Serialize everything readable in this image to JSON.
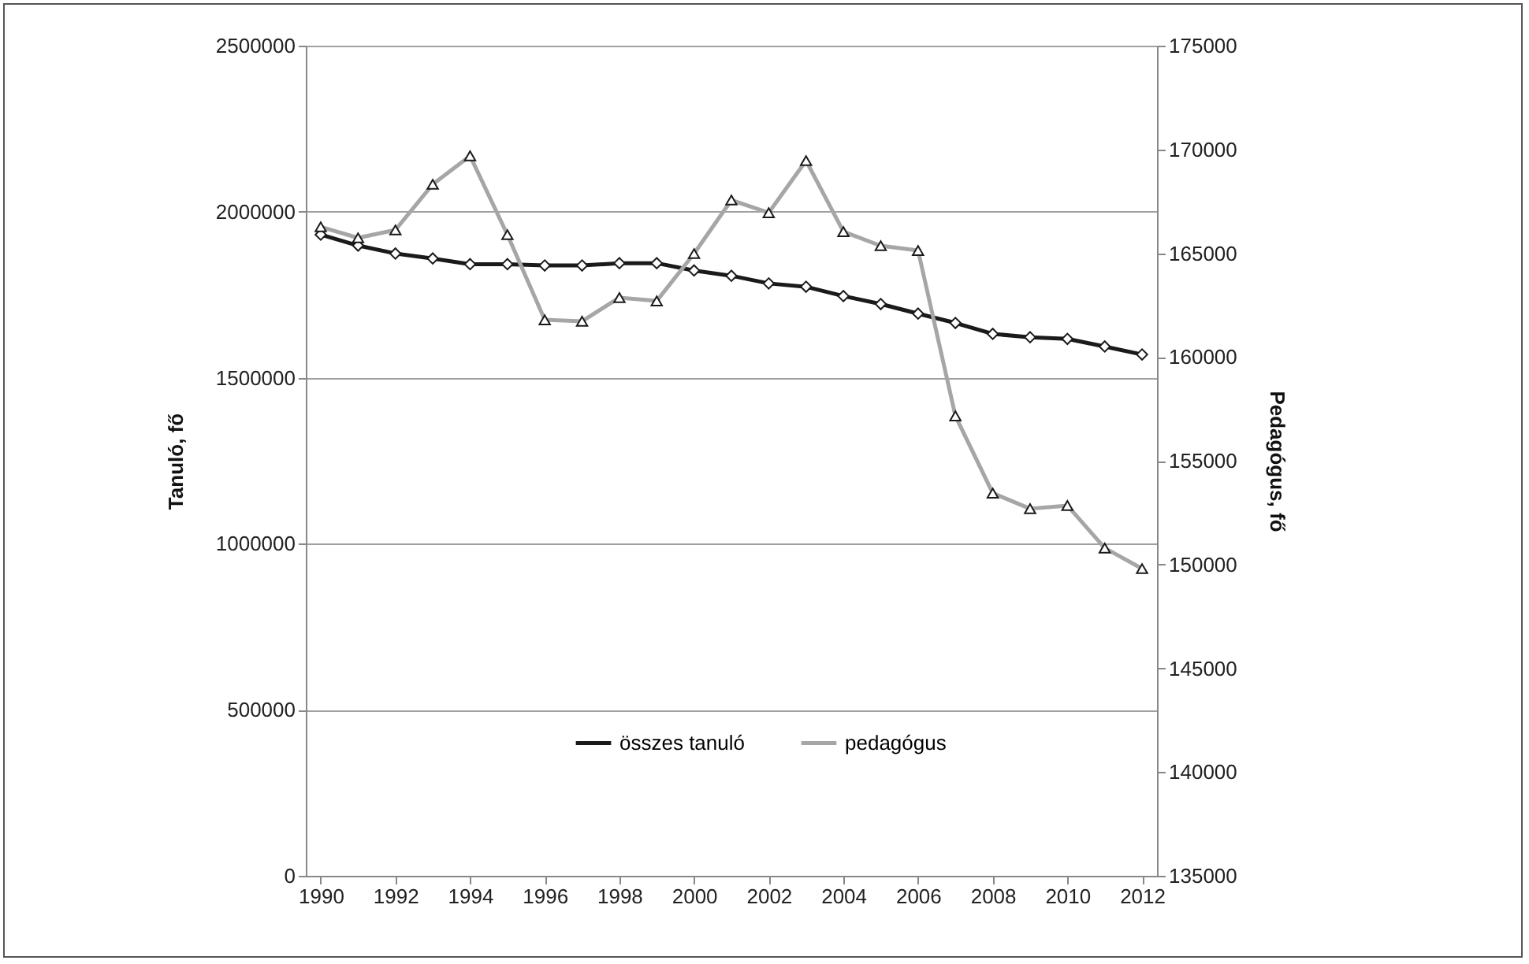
{
  "chart_data": {
    "type": "line",
    "xlabel": null,
    "ylabel": "Tanuló, fő",
    "y2label": "Pedagógus, fő",
    "x": [
      1990,
      1991,
      1992,
      1993,
      1994,
      1995,
      1996,
      1997,
      1998,
      1999,
      2000,
      2001,
      2002,
      2003,
      2004,
      2005,
      2006,
      2007,
      2008,
      2009,
      2010,
      2011,
      2012
    ],
    "xlim": [
      1989.6,
      2012.4
    ],
    "xticks": [
      1990,
      1992,
      1994,
      1996,
      1998,
      2000,
      2002,
      2004,
      2006,
      2008,
      2010,
      2012
    ],
    "ylim": [
      0,
      2500000
    ],
    "yticks": [
      0,
      500000,
      1000000,
      1500000,
      2000000,
      2500000
    ],
    "y2lim": [
      135000,
      175000
    ],
    "y2ticks": [
      135000,
      140000,
      145000,
      150000,
      155000,
      160000,
      165000,
      170000,
      175000
    ],
    "grid": "y",
    "legend": "bottom",
    "series": [
      {
        "name": "összes tanuló",
        "color": "#1a1a1a",
        "marker": "diamond",
        "values": [
          1931000,
          1898000,
          1874000,
          1859000,
          1842000,
          1842000,
          1838000,
          1838000,
          1845000,
          1845000,
          1823000,
          1807000,
          1784000,
          1774000,
          1746000,
          1722000,
          1693000,
          1665000,
          1632000,
          1622000,
          1617000,
          1594000,
          1570000
        ]
      },
      {
        "name": "pedagógus",
        "color": "#a6a6a6",
        "marker": "triangle",
        "axis": "y2",
        "values": [
          166270,
          165740,
          166120,
          168320,
          169690,
          165890,
          161790,
          161720,
          162860,
          162700,
          164980,
          167560,
          166950,
          169460,
          166040,
          165360,
          165130,
          157160,
          153440,
          152690,
          152840,
          150790,
          149800
        ]
      }
    ]
  }
}
